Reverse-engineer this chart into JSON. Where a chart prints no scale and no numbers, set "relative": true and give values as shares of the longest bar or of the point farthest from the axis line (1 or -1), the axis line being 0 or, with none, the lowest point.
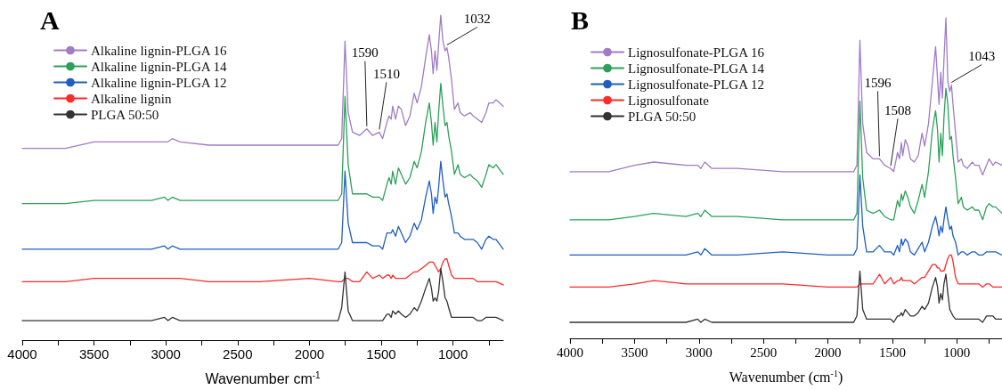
{
  "chart_data": [
    {
      "type": "line",
      "title": "A",
      "xlabel": "Wavenumber cm$^{-1}$",
      "relative": true,
      "legend": "top left",
      "xlim": [
        4000,
        650
      ],
      "xticks": [
        4000,
        {
          "value": 3750,
          "label": null
        },
        3500,
        {
          "value": 3250,
          "label": null
        },
        3000,
        {
          "value": 2750,
          "label": null
        },
        2500,
        {
          "value": 2250,
          "label": null
        },
        2000,
        {
          "value": 1750,
          "label": null
        },
        1500,
        {
          "value": 1250,
          "label": null
        },
        1000,
        {
          "value": 750,
          "label": null
        }
      ],
      "x": [
        4000,
        3700,
        3500,
        3350,
        3100,
        3010,
        2985,
        2955,
        2900,
        2700,
        2350,
        2000,
        1800,
        1775,
        1752,
        1730,
        1700,
        1650,
        1600,
        1560,
        1513,
        1490,
        1460,
        1445,
        1430,
        1420,
        1400,
        1380,
        1360,
        1330,
        1300,
        1270,
        1250,
        1220,
        1190,
        1165,
        1150,
        1138,
        1125,
        1112,
        1100,
        1085,
        1070,
        1055,
        1042,
        1030,
        1010,
        990,
        965,
        950,
        920,
        880,
        860,
        830,
        800,
        770,
        750,
        720,
        700,
        650
      ],
      "annotations": [
        {
          "text": "1590",
          "x": 1600,
          "y": 0.65
        },
        {
          "text": "1510",
          "x": 1513,
          "y": 0.64
        },
        {
          "text": "1032",
          "x": 1042,
          "y": 0.9
        }
      ],
      "series": [
        {
          "name": "Alkaline lignin-PLGA 16",
          "color": "#a07cc5",
          "values": [
            0.59,
            0.59,
            0.61,
            0.61,
            0.61,
            0.61,
            0.61,
            0.62,
            0.61,
            0.6,
            0.6,
            0.6,
            0.6,
            0.62,
            0.92,
            0.7,
            0.64,
            0.63,
            0.65,
            0.63,
            0.64,
            0.62,
            0.67,
            0.69,
            0.68,
            0.72,
            0.68,
            0.72,
            0.71,
            0.66,
            0.69,
            0.76,
            0.73,
            0.78,
            0.87,
            0.94,
            0.89,
            0.82,
            0.89,
            0.83,
            0.91,
            1.0,
            0.92,
            0.89,
            0.9,
            0.87,
            0.8,
            0.71,
            0.73,
            0.7,
            0.69,
            0.7,
            0.69,
            0.68,
            0.67,
            0.7,
            0.73,
            0.73,
            0.74,
            0.72
          ]
        },
        {
          "name": "Alkaline lignin-PLGA 14",
          "color": "#2ca05a",
          "values": [
            0.42,
            0.42,
            0.43,
            0.43,
            0.43,
            0.44,
            0.43,
            0.44,
            0.43,
            0.43,
            0.43,
            0.43,
            0.43,
            0.45,
            0.75,
            0.54,
            0.45,
            0.45,
            0.45,
            0.44,
            0.44,
            0.43,
            0.48,
            0.5,
            0.48,
            0.52,
            0.48,
            0.53,
            0.51,
            0.48,
            0.5,
            0.55,
            0.53,
            0.58,
            0.67,
            0.73,
            0.67,
            0.6,
            0.67,
            0.61,
            0.7,
            0.79,
            0.72,
            0.66,
            0.67,
            0.63,
            0.58,
            0.51,
            0.54,
            0.51,
            0.5,
            0.51,
            0.5,
            0.49,
            0.47,
            0.51,
            0.54,
            0.53,
            0.54,
            0.51
          ]
        },
        {
          "name": "Alkaline lignin-PLGA 12",
          "color": "#1f5fbf",
          "values": [
            0.28,
            0.28,
            0.28,
            0.28,
            0.28,
            0.29,
            0.28,
            0.29,
            0.28,
            0.28,
            0.28,
            0.28,
            0.28,
            0.3,
            0.52,
            0.36,
            0.3,
            0.3,
            0.3,
            0.29,
            0.29,
            0.28,
            0.33,
            0.33,
            0.33,
            0.34,
            0.32,
            0.35,
            0.33,
            0.3,
            0.32,
            0.36,
            0.34,
            0.37,
            0.44,
            0.49,
            0.45,
            0.39,
            0.44,
            0.42,
            0.47,
            0.55,
            0.49,
            0.44,
            0.45,
            0.42,
            0.38,
            0.33,
            0.33,
            0.32,
            0.31,
            0.31,
            0.31,
            0.3,
            0.28,
            0.31,
            0.32,
            0.31,
            0.31,
            0.28
          ]
        },
        {
          "name": "Alkaline lignin",
          "color": "#ff2a2a",
          "values": [
            0.18,
            0.18,
            0.19,
            0.19,
            0.19,
            0.19,
            0.19,
            0.19,
            0.19,
            0.18,
            0.18,
            0.19,
            0.18,
            0.18,
            0.19,
            0.19,
            0.18,
            0.18,
            0.21,
            0.19,
            0.2,
            0.19,
            0.2,
            0.2,
            0.19,
            0.2,
            0.19,
            0.19,
            0.19,
            0.19,
            0.2,
            0.21,
            0.21,
            0.22,
            0.23,
            0.24,
            0.24,
            0.24,
            0.23,
            0.22,
            0.21,
            0.22,
            0.24,
            0.25,
            0.25,
            0.23,
            0.2,
            0.19,
            0.19,
            0.19,
            0.19,
            0.19,
            0.19,
            0.18,
            0.18,
            0.18,
            0.18,
            0.18,
            0.18,
            0.17
          ]
        },
        {
          "name": "PLGA 50:50",
          "color": "#333333",
          "values": [
            0.06,
            0.06,
            0.06,
            0.06,
            0.06,
            0.07,
            0.06,
            0.07,
            0.06,
            0.06,
            0.06,
            0.06,
            0.06,
            0.1,
            0.21,
            0.09,
            0.06,
            0.06,
            0.06,
            0.06,
            0.06,
            0.06,
            0.08,
            0.08,
            0.07,
            0.09,
            0.08,
            0.09,
            0.08,
            0.07,
            0.08,
            0.1,
            0.09,
            0.12,
            0.16,
            0.19,
            0.16,
            0.12,
            0.13,
            0.12,
            0.15,
            0.22,
            0.18,
            0.13,
            0.12,
            0.1,
            0.07,
            0.07,
            0.07,
            0.07,
            0.07,
            0.07,
            0.07,
            0.06,
            0.06,
            0.07,
            0.07,
            0.07,
            0.07,
            0.06
          ]
        }
      ]
    },
    {
      "type": "line",
      "title": "B",
      "xlabel": "Wavenumber (cm$^{-1}$)",
      "relative": true,
      "legend": "top left",
      "xlim": [
        4000,
        650
      ],
      "xticks": [
        4000,
        {
          "value": 3750,
          "label": null
        },
        3500,
        {
          "value": 3250,
          "label": null
        },
        3000,
        {
          "value": 2750,
          "label": null
        },
        2500,
        {
          "value": 2250,
          "label": null
        },
        2000,
        {
          "value": 1750,
          "label": null
        },
        1500,
        {
          "value": 1250,
          "label": null
        },
        1000,
        {
          "value": 750,
          "label": null
        }
      ],
      "x": [
        4000,
        3700,
        3500,
        3350,
        3100,
        3010,
        2985,
        2955,
        2900,
        2700,
        2350,
        2000,
        1800,
        1775,
        1752,
        1730,
        1700,
        1650,
        1600,
        1560,
        1513,
        1490,
        1460,
        1445,
        1430,
        1420,
        1400,
        1380,
        1360,
        1330,
        1300,
        1270,
        1250,
        1220,
        1190,
        1165,
        1150,
        1138,
        1125,
        1112,
        1100,
        1085,
        1070,
        1055,
        1042,
        1030,
        1010,
        990,
        965,
        950,
        920,
        880,
        860,
        830,
        800,
        770,
        750,
        720,
        700,
        650
      ],
      "annotations": [
        {
          "text": "1596",
          "x": 1600,
          "y": 0.56
        },
        {
          "text": "1508",
          "x": 1513,
          "y": 0.53
        },
        {
          "text": "1043",
          "x": 1042,
          "y": 0.79
        }
      ],
      "series": [
        {
          "name": "Lignosulfonate-PLGA 16",
          "color": "#a07cc5",
          "values": [
            0.52,
            0.52,
            0.54,
            0.55,
            0.54,
            0.54,
            0.53,
            0.55,
            0.53,
            0.53,
            0.52,
            0.52,
            0.52,
            0.54,
            0.93,
            0.67,
            0.58,
            0.56,
            0.56,
            0.54,
            0.53,
            0.52,
            0.58,
            0.56,
            0.61,
            0.57,
            0.62,
            0.6,
            0.56,
            0.55,
            0.57,
            0.64,
            0.6,
            0.67,
            0.8,
            0.91,
            0.81,
            0.73,
            0.83,
            0.75,
            0.87,
            1.0,
            0.8,
            0.77,
            0.79,
            0.73,
            0.64,
            0.55,
            0.56,
            0.54,
            0.53,
            0.55,
            0.54,
            0.54,
            0.51,
            0.54,
            0.56,
            0.54,
            0.55,
            0.54
          ]
        },
        {
          "name": "Lignosulfonate-PLGA 14",
          "color": "#2ca05a",
          "values": [
            0.37,
            0.37,
            0.38,
            0.39,
            0.38,
            0.39,
            0.38,
            0.4,
            0.38,
            0.38,
            0.37,
            0.37,
            0.37,
            0.39,
            0.74,
            0.5,
            0.4,
            0.39,
            0.4,
            0.38,
            0.37,
            0.37,
            0.43,
            0.41,
            0.45,
            0.43,
            0.46,
            0.44,
            0.41,
            0.39,
            0.43,
            0.48,
            0.44,
            0.52,
            0.65,
            0.71,
            0.65,
            0.55,
            0.64,
            0.57,
            0.69,
            0.78,
            0.73,
            0.62,
            0.63,
            0.57,
            0.5,
            0.42,
            0.44,
            0.41,
            0.4,
            0.41,
            0.4,
            0.4,
            0.37,
            0.41,
            0.42,
            0.41,
            0.41,
            0.39
          ]
        },
        {
          "name": "Lignosulfonate-PLGA 12",
          "color": "#1f5fbf",
          "values": [
            0.26,
            0.26,
            0.26,
            0.26,
            0.26,
            0.27,
            0.26,
            0.28,
            0.26,
            0.26,
            0.27,
            0.26,
            0.26,
            0.28,
            0.51,
            0.35,
            0.27,
            0.27,
            0.29,
            0.27,
            0.27,
            0.26,
            0.29,
            0.27,
            0.31,
            0.29,
            0.31,
            0.3,
            0.27,
            0.26,
            0.28,
            0.3,
            0.27,
            0.3,
            0.35,
            0.38,
            0.35,
            0.32,
            0.35,
            0.33,
            0.37,
            0.41,
            0.37,
            0.34,
            0.35,
            0.32,
            0.3,
            0.26,
            0.27,
            0.27,
            0.26,
            0.27,
            0.27,
            0.26,
            0.26,
            0.27,
            0.27,
            0.27,
            0.27,
            0.26
          ]
        },
        {
          "name": "Lignosulfonate",
          "color": "#ff2a2a",
          "values": [
            0.16,
            0.16,
            0.17,
            0.18,
            0.17,
            0.17,
            0.17,
            0.17,
            0.17,
            0.17,
            0.17,
            0.16,
            0.16,
            0.16,
            0.17,
            0.17,
            0.17,
            0.17,
            0.2,
            0.17,
            0.19,
            0.17,
            0.18,
            0.18,
            0.19,
            0.18,
            0.18,
            0.18,
            0.18,
            0.17,
            0.18,
            0.19,
            0.19,
            0.21,
            0.23,
            0.23,
            0.22,
            0.22,
            0.21,
            0.21,
            0.21,
            0.23,
            0.25,
            0.26,
            0.26,
            0.24,
            0.19,
            0.17,
            0.17,
            0.17,
            0.17,
            0.17,
            0.17,
            0.17,
            0.16,
            0.17,
            0.17,
            0.16,
            0.16,
            0.16
          ]
        },
        {
          "name": "PLGA 50:50",
          "color": "#333333",
          "values": [
            0.05,
            0.05,
            0.05,
            0.05,
            0.05,
            0.06,
            0.05,
            0.06,
            0.05,
            0.05,
            0.05,
            0.05,
            0.05,
            0.07,
            0.21,
            0.09,
            0.06,
            0.06,
            0.06,
            0.06,
            0.06,
            0.05,
            0.07,
            0.07,
            0.08,
            0.07,
            0.09,
            0.08,
            0.07,
            0.07,
            0.08,
            0.1,
            0.09,
            0.11,
            0.16,
            0.19,
            0.16,
            0.11,
            0.14,
            0.12,
            0.17,
            0.2,
            0.14,
            0.09,
            0.08,
            0.07,
            0.06,
            0.06,
            0.06,
            0.06,
            0.06,
            0.06,
            0.06,
            0.06,
            0.05,
            0.07,
            0.07,
            0.07,
            0.06,
            0.06
          ]
        }
      ]
    }
  ]
}
